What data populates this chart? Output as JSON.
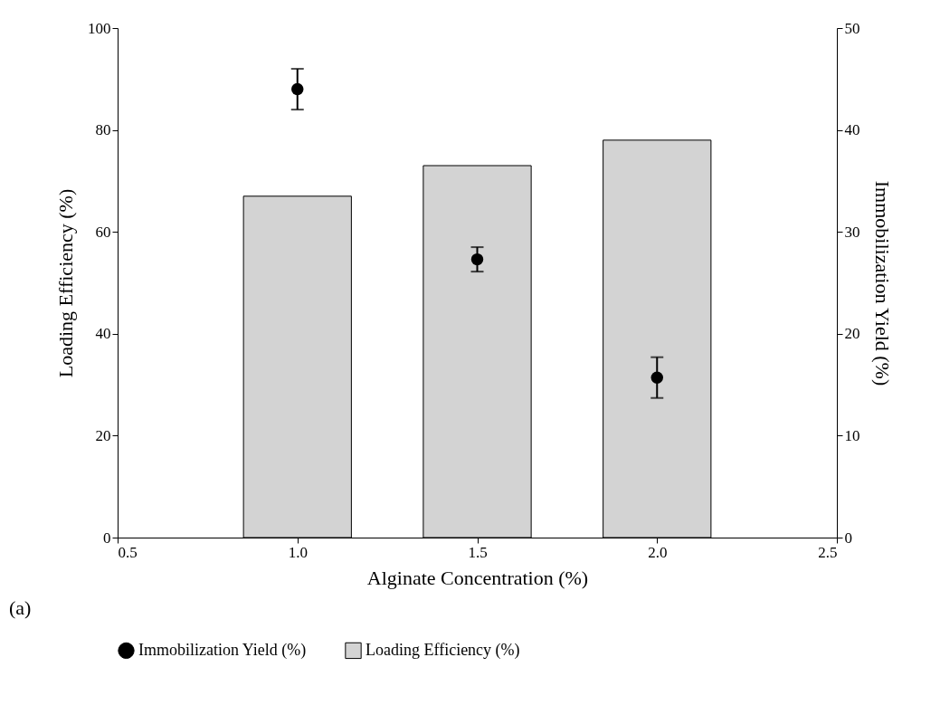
{
  "chart_data": {
    "type": "bar",
    "xlabel": "Alginate Concentration (%)",
    "ylabel": "Loading Efficiency (%)",
    "y2label": "Immobilization Yield (%)",
    "series": [
      {
        "name": "Immobilization Yield (%)",
        "type": "scatter",
        "axis": "y2",
        "color": "#000000",
        "x": [
          1.0,
          1.5,
          2.0
        ],
        "values": [
          44,
          27.3,
          15.7
        ],
        "errors": [
          2,
          1.2,
          2
        ]
      },
      {
        "name": "Loading Efficiency (%)",
        "color": "#d3d3d3",
        "x": [
          1.0,
          1.5,
          2.0
        ],
        "values": [
          67,
          73,
          78
        ]
      }
    ],
    "xlim": [
      0.5,
      2.5
    ],
    "xticks": [
      0.5,
      {
        "value": 1,
        "label": "1.0"
      },
      1.5,
      {
        "value": 2,
        "label": "2.0"
      },
      2.5
    ],
    "ylim": [
      0,
      100
    ],
    "yticks": [
      0,
      20,
      40,
      60,
      80,
      100
    ],
    "y2lim": [
      0,
      50
    ],
    "y2ticks": [
      0,
      10,
      20,
      30,
      40,
      50
    ],
    "annotations": [
      "(a)"
    ],
    "legend": "bottom",
    "grid": false,
    "marker": "circle"
  }
}
